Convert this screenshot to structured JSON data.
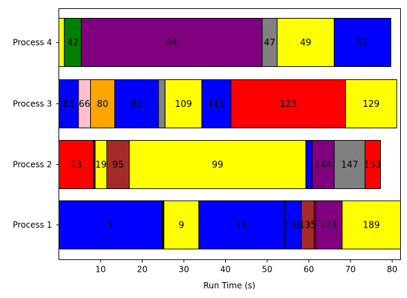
{
  "chart_data": {
    "type": "bar",
    "orientation": "horizontal",
    "stacked": true,
    "title": "",
    "xlabel": "Run Time (s)",
    "ylabel": "",
    "xlim": [
      0,
      82
    ],
    "xticks": [
      10,
      20,
      30,
      40,
      50,
      60,
      70,
      80
    ],
    "grid": false,
    "categories": [
      "Process 1",
      "Process 2",
      "Process 3",
      "Process 4"
    ],
    "bars": [
      {
        "category": "Process 1",
        "segments": [
          {
            "label": "1",
            "start": 0,
            "end": 24.8,
            "color": "#0000ff"
          },
          {
            "label": "",
            "start": 24.8,
            "end": 25.2,
            "color": "#000000"
          },
          {
            "label": "9",
            "start": 25.2,
            "end": 33.6,
            "color": "#ffff00"
          },
          {
            "label": "11",
            "start": 33.6,
            "end": 54.2,
            "color": "#0000ff"
          },
          {
            "label": "131",
            "start": 54.2,
            "end": 58.2,
            "color": "#0000ff"
          },
          {
            "label": "135",
            "start": 58.2,
            "end": 61.3,
            "color": "#a52a2a"
          },
          {
            "label": "",
            "start": 61.3,
            "end": 61.6,
            "color": "#ff0000"
          },
          {
            "label": "174",
            "start": 61.6,
            "end": 68.0,
            "color": "#800080"
          },
          {
            "label": "189",
            "start": 68.0,
            "end": 82.0,
            "color": "#ffff00"
          }
        ]
      },
      {
        "category": "Process 2",
        "segments": [
          {
            "label": "13",
            "start": 0,
            "end": 8.3,
            "color": "#ff0000"
          },
          {
            "label": "",
            "start": 8.3,
            "end": 8.7,
            "color": "#000000"
          },
          {
            "label": "19",
            "start": 8.7,
            "end": 11.5,
            "color": "#ffff00"
          },
          {
            "label": "95",
            "start": 11.5,
            "end": 16.9,
            "color": "#a52a2a"
          },
          {
            "label": "99",
            "start": 16.9,
            "end": 59.3,
            "color": "#ffff00"
          },
          {
            "label": "",
            "start": 59.3,
            "end": 60.8,
            "color": "#0000ff"
          },
          {
            "label": "144",
            "start": 60.8,
            "end": 66.1,
            "color": "#800080"
          },
          {
            "label": "147",
            "start": 66.1,
            "end": 73.5,
            "color": "#808080"
          },
          {
            "label": "153",
            "start": 73.5,
            "end": 77.2,
            "color": "#ff0000"
          }
        ]
      },
      {
        "category": "Process 3",
        "segments": [
          {
            "label": "61",
            "start": 0,
            "end": 4.7,
            "color": "#0000ff"
          },
          {
            "label": "66",
            "start": 4.7,
            "end": 7.6,
            "color": "#ffc0cb"
          },
          {
            "label": "80",
            "start": 7.6,
            "end": 13.4,
            "color": "#ffa500"
          },
          {
            "label": "81",
            "start": 13.4,
            "end": 23.9,
            "color": "#0000ff"
          },
          {
            "label": "",
            "start": 23.9,
            "end": 25.5,
            "color": "#808080"
          },
          {
            "label": "109",
            "start": 25.5,
            "end": 34.3,
            "color": "#ffff00"
          },
          {
            "label": "111",
            "start": 34.3,
            "end": 41.3,
            "color": "#0000ff"
          },
          {
            "label": "123",
            "start": 41.3,
            "end": 68.8,
            "color": "#ff0000"
          },
          {
            "label": "129",
            "start": 68.8,
            "end": 81.1,
            "color": "#ffff00"
          }
        ]
      },
      {
        "category": "Process 4",
        "segments": [
          {
            "label": "",
            "start": 0,
            "end": 1.3,
            "color": "#ffff00"
          },
          {
            "label": "42",
            "start": 1.3,
            "end": 5.4,
            "color": "#008000"
          },
          {
            "label": "44",
            "start": 5.4,
            "end": 48.8,
            "color": "#800080"
          },
          {
            "label": "47",
            "start": 48.8,
            "end": 52.4,
            "color": "#808080"
          },
          {
            "label": "49",
            "start": 52.4,
            "end": 66.1,
            "color": "#ffff00"
          },
          {
            "label": "51",
            "start": 66.1,
            "end": 79.7,
            "color": "#0000ff"
          }
        ]
      }
    ]
  }
}
